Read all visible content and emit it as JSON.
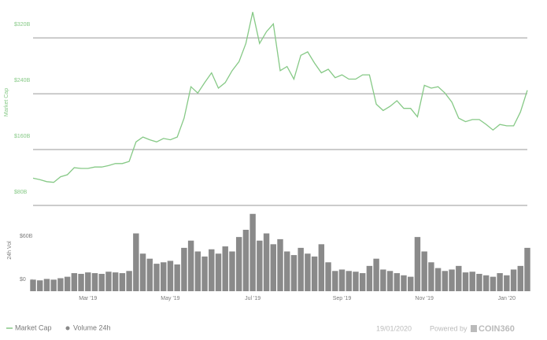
{
  "chart_data": {
    "type": "line",
    "ylabel": "Market Cap",
    "y2label": "24h Vol",
    "categories": [
      null,
      null,
      null,
      null,
      null,
      null,
      null,
      null,
      "Mar '19",
      null,
      null,
      null,
      null,
      null,
      null,
      null,
      null,
      null,
      null,
      null,
      "May '19",
      null,
      null,
      null,
      null,
      null,
      null,
      null,
      null,
      null,
      null,
      null,
      "Jul '19",
      null,
      null,
      null,
      null,
      null,
      null,
      null,
      null,
      null,
      null,
      null,
      null,
      "Sep '19",
      null,
      null,
      null,
      null,
      null,
      null,
      null,
      null,
      null,
      null,
      null,
      "Nov '19",
      null,
      null,
      null,
      null,
      null,
      null,
      null,
      null,
      null,
      null,
      null,
      "Jan '20",
      null,
      null,
      null
    ],
    "series": [
      {
        "name": "Market Cap",
        "type": "line",
        "color": "#86c986",
        "values": [
          119,
          117,
          114,
          113,
          121,
          124,
          134,
          133,
          133,
          135,
          135,
          137,
          140,
          140,
          143,
          171,
          178,
          174,
          171,
          176,
          174,
          178,
          205,
          250,
          241,
          256,
          270,
          248,
          256,
          273,
          286,
          312,
          357,
          312,
          329,
          340,
          273,
          279,
          261,
          295,
          300,
          284,
          270,
          275,
          263,
          267,
          261,
          261,
          267,
          267,
          225,
          216,
          222,
          230,
          219,
          219,
          207,
          252,
          248,
          250,
          241,
          228,
          205,
          200,
          203,
          203,
          196,
          188,
          196,
          194,
          194,
          214,
          245
        ]
      },
      {
        "name": "Volume 24h",
        "type": "bar",
        "axis": "y2",
        "color": "#8a8a8a",
        "values": [
          16,
          15,
          17,
          16,
          18,
          20,
          25,
          24,
          26,
          25,
          24,
          27,
          26,
          25,
          28,
          80,
          52,
          45,
          38,
          40,
          42,
          37,
          60,
          70,
          55,
          48,
          58,
          52,
          62,
          55,
          75,
          85,
          107,
          70,
          80,
          65,
          72,
          55,
          50,
          60,
          52,
          48,
          65,
          40,
          28,
          30,
          28,
          27,
          25,
          35,
          45,
          30,
          28,
          25,
          22,
          20,
          75,
          55,
          40,
          32,
          28,
          30,
          35,
          26,
          27,
          24,
          22,
          20,
          25,
          22,
          30,
          35,
          60
        ]
      }
    ],
    "ylim": [
      80,
      363
    ],
    "yticks": [
      {
        "value": 80,
        "label": "$80B"
      },
      {
        "value": 160,
        "label": "$160B"
      },
      {
        "value": 240,
        "label": "$240B"
      },
      {
        "value": 320,
        "label": "$320B"
      }
    ],
    "y2lim": [
      0,
      110
    ],
    "y2ticks": [
      {
        "value": 0,
        "label": "$0"
      },
      {
        "value": 60,
        "label": "$60B"
      }
    ],
    "grid": true
  },
  "footer": {
    "date": "19/01/2020",
    "credit": "Powered by",
    "brand": "COIN360"
  }
}
